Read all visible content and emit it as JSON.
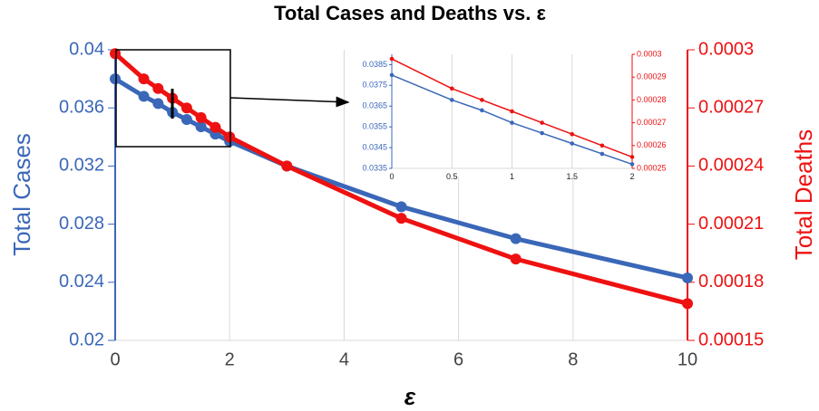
{
  "chart_data": [
    {
      "type": "line",
      "title": "Total Cases and Deaths vs. ε",
      "xlabel": "ε",
      "ylabel": "Total Cases",
      "y2label": "Total Deaths",
      "x": [
        0,
        0.5,
        0.75,
        1,
        1.25,
        1.5,
        1.75,
        2,
        3,
        5,
        7,
        10
      ],
      "series": [
        {
          "name": "Total Cases",
          "color": "#3a67b8",
          "values": [
            0.038,
            0.0368,
            0.0363,
            0.0357,
            0.0352,
            0.0347,
            0.0342,
            0.0337,
            0.032,
            0.0292,
            0.027,
            0.0243
          ]
        },
        {
          "name": "Total Deaths",
          "color": "#ee1111",
          "axis": "y2",
          "values": [
            0.000298,
            0.000285,
            0.00028,
            0.000275,
            0.00027,
            0.000265,
            0.00026,
            0.000255,
            0.00024,
            0.000213,
            0.000192,
            0.000169
          ]
        }
      ],
      "xlim": [
        0,
        10
      ],
      "xticks": [
        0,
        2,
        4,
        6,
        8,
        10
      ],
      "ylim": [
        0.02,
        0.04
      ],
      "yticks": [
        0.02,
        0.024,
        0.028,
        0.032,
        0.036,
        0.04
      ],
      "y2lim": [
        0.00015,
        0.0003
      ],
      "y2ticks": [
        0.00015,
        0.00018,
        0.00021,
        0.00024,
        0.00027,
        0.0003
      ],
      "grid": "x"
    },
    {
      "type": "line",
      "x": [
        0,
        0.5,
        0.75,
        1,
        1.25,
        1.5,
        1.75,
        2
      ],
      "series": [
        {
          "name": "Total Cases",
          "color": "#3a67b8",
          "values": [
            0.038,
            0.0368,
            0.0363,
            0.0357,
            0.0352,
            0.0347,
            0.0342,
            0.0337
          ]
        },
        {
          "name": "Total Deaths",
          "color": "#ee1111",
          "axis": "y2",
          "values": [
            0.000298,
            0.000285,
            0.00028,
            0.000275,
            0.00027,
            0.000265,
            0.00026,
            0.000255
          ]
        }
      ],
      "xlim": [
        0,
        2
      ],
      "xticks": [
        0,
        0.5,
        1,
        1.5,
        2
      ],
      "ylim": [
        0.0335,
        0.039
      ],
      "yticks": [
        0.0335,
        0.0345,
        0.0355,
        0.0365,
        0.0375,
        0.0385
      ],
      "y2lim": [
        0.00025,
        0.0003
      ],
      "y2ticks": [
        0.00025,
        0.00026,
        0.00027,
        0.00028,
        0.00029,
        0.0003
      ],
      "grid": "x"
    }
  ]
}
